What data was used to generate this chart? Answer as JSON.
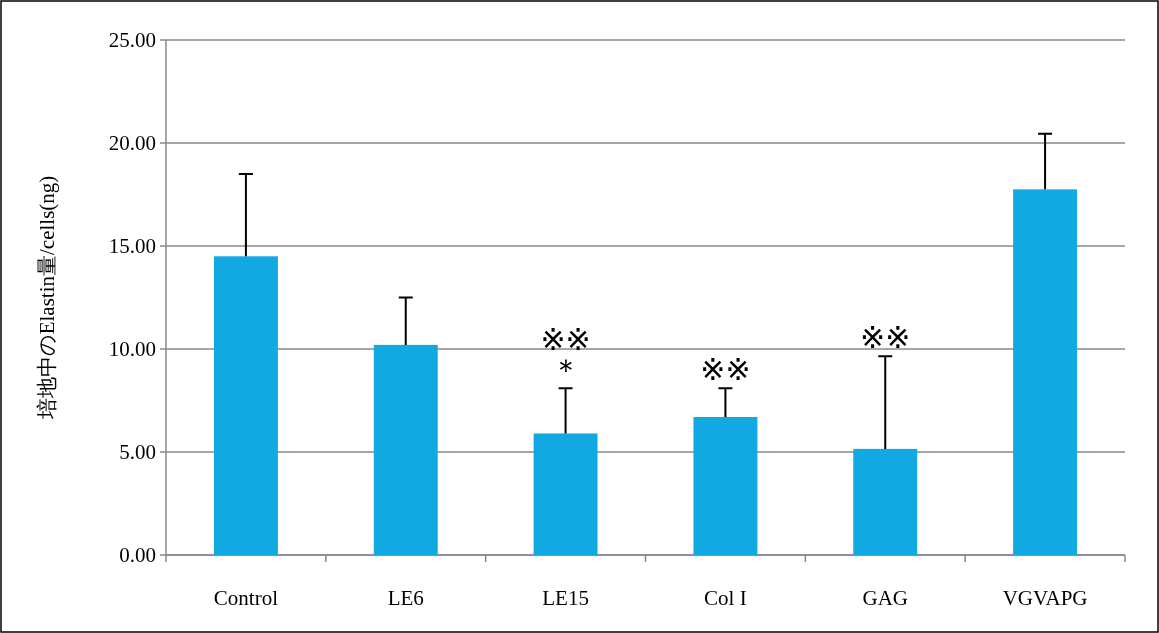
{
  "chart_data": {
    "type": "bar",
    "ylabel": "培地中のElastin量/cells(ng)",
    "categories": [
      "Control",
      "LE6",
      "LE15",
      "Col I",
      "GAG",
      "VGVAPG"
    ],
    "values": [
      14.5,
      10.2,
      5.9,
      6.7,
      5.15,
      17.75
    ],
    "errors": [
      4.0,
      2.3,
      2.2,
      1.4,
      4.5,
      2.7
    ],
    "color": "#12a8e2",
    "ylim": [
      0,
      25
    ],
    "yticks": [
      {
        "value": 0,
        "label": "0.00"
      },
      {
        "value": 5,
        "label": "5.00"
      },
      {
        "value": 10,
        "label": "10.00"
      },
      {
        "value": 15,
        "label": "15.00"
      },
      {
        "value": 20,
        "label": "20.00"
      },
      {
        "value": 25,
        "label": "25.00"
      }
    ],
    "grid": "y",
    "annotations": [
      {
        "text": "＊",
        "x": "LE15",
        "y": 8.1
      },
      {
        "text": "※※",
        "x": "LE15",
        "y": 8.1
      },
      {
        "text": "※※",
        "x": "Col I",
        "y": 8.1
      },
      {
        "text": "※※",
        "x": "GAG",
        "y": 9.65
      }
    ]
  }
}
